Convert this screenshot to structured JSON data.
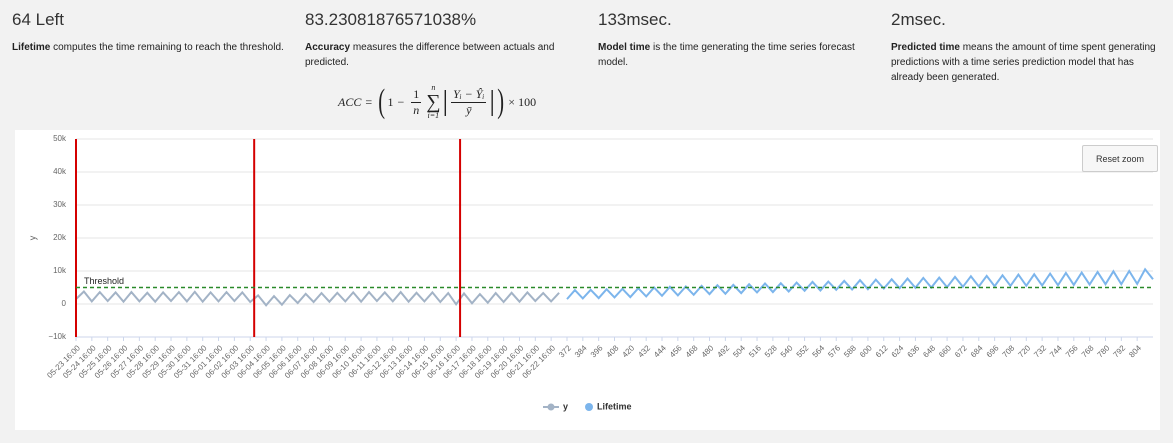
{
  "stats": [
    {
      "value": "64 Left",
      "term": "Lifetime",
      "text": "computes the time remaining to reach the threshold."
    },
    {
      "value": "83.23081876571038%",
      "term": "Accuracy",
      "text": "measures the difference between actuals and predicted."
    },
    {
      "value": "133msec.",
      "term": "Model time",
      "text": "is the time generating the time series forecast model."
    },
    {
      "value": "2msec.",
      "term": "Predicted time",
      "text": "means the amount of time spent generating predictions with a time series prediction model that has already been generated."
    }
  ],
  "formula": {
    "lhs": "ACC",
    "eq": "=",
    "open": "(",
    "one": "1",
    "minus": "−",
    "frac_num": "1",
    "frac_den": "n",
    "sigma": "∑",
    "sum_top": "n",
    "sum_bottom": "i=1",
    "bar": "|",
    "abs_num": "Yᵢ − Ŷᵢ",
    "abs_den": "ȳ",
    "close": ")",
    "factor": "× 100"
  },
  "reset_button": "Reset zoom",
  "chart_data": {
    "type": "line",
    "y_axis_title": "y",
    "ylim": [
      -10000,
      50000
    ],
    "yticks": [
      {
        "value": -10000,
        "label": "−10k"
      },
      0,
      {
        "value": 10000,
        "label": "10k"
      },
      {
        "value": 20000,
        "label": "20k"
      },
      {
        "value": 30000,
        "label": "30k"
      },
      {
        "value": 40000,
        "label": "40k"
      },
      {
        "value": 50000,
        "label": "50k"
      }
    ],
    "xlim": [
      0,
      816
    ],
    "xticks": [
      {
        "value": 0,
        "label": "05-23 16:00"
      },
      {
        "value": 12,
        "label": "05-24 16:00"
      },
      {
        "value": 24,
        "label": "05-25 16:00"
      },
      {
        "value": 36,
        "label": "05-26 16:00"
      },
      {
        "value": 48,
        "label": "05-27 16:00"
      },
      {
        "value": 60,
        "label": "05-28 16:00"
      },
      {
        "value": 72,
        "label": "05-29 16:00"
      },
      {
        "value": 84,
        "label": "05-30 16:00"
      },
      {
        "value": 96,
        "label": "05-31 16:00"
      },
      {
        "value": 108,
        "label": "06-01 16:00"
      },
      {
        "value": 120,
        "label": "06-02 16:00"
      },
      {
        "value": 132,
        "label": "06-03 16:00"
      },
      {
        "value": 144,
        "label": "06-04 16:00"
      },
      {
        "value": 156,
        "label": "06-05 16:00"
      },
      {
        "value": 168,
        "label": "06-06 16:00"
      },
      {
        "value": 180,
        "label": "06-07 16:00"
      },
      {
        "value": 192,
        "label": "06-08 16:00"
      },
      {
        "value": 204,
        "label": "06-09 16:00"
      },
      {
        "value": 216,
        "label": "06-10 16:00"
      },
      {
        "value": 228,
        "label": "06-11 16:00"
      },
      {
        "value": 240,
        "label": "06-12 16:00"
      },
      {
        "value": 252,
        "label": "06-13 16:00"
      },
      {
        "value": 264,
        "label": "06-14 16:00"
      },
      {
        "value": 276,
        "label": "06-15 16:00"
      },
      {
        "value": 288,
        "label": "06-16 16:00"
      },
      {
        "value": 300,
        "label": "06-17 16:00"
      },
      {
        "value": 312,
        "label": "06-18 16:00"
      },
      {
        "value": 324,
        "label": "06-19 16:00"
      },
      {
        "value": 336,
        "label": "06-20 16:00"
      },
      {
        "value": 348,
        "label": "06-21 16:00"
      },
      {
        "value": 360,
        "label": "06-22 16:00"
      },
      372,
      384,
      396,
      408,
      420,
      432,
      444,
      456,
      468,
      480,
      492,
      504,
      516,
      528,
      540,
      552,
      564,
      576,
      588,
      600,
      612,
      624,
      636,
      648,
      660,
      672,
      684,
      696,
      708,
      720,
      732,
      744,
      756,
      768,
      780,
      792,
      804
    ],
    "grid": true,
    "plot_lines": [
      {
        "value": 0,
        "color": "#d40000"
      },
      {
        "value": 135,
        "color": "#d40000"
      },
      {
        "value": 291,
        "color": "#d40000"
      }
    ],
    "threshold": {
      "value": 5000,
      "label": "Threshold",
      "color": "#2a8a2a"
    },
    "series": [
      {
        "name": "y",
        "color": "#a3b3c6",
        "x": [
          0,
          6,
          12,
          18,
          24,
          30,
          36,
          42,
          48,
          54,
          60,
          66,
          72,
          78,
          84,
          90,
          96,
          102,
          108,
          114,
          120,
          126,
          132,
          138,
          144,
          150,
          156,
          162,
          168,
          174,
          180,
          186,
          192,
          198,
          204,
          210,
          216,
          222,
          228,
          234,
          240,
          246,
          252,
          258,
          264,
          270,
          276,
          282,
          288,
          294,
          300,
          306,
          312,
          318,
          324,
          330,
          336,
          342,
          348,
          354,
          360,
          366
        ],
        "values": [
          1500,
          3800,
          800,
          3600,
          900,
          3500,
          700,
          3600,
          800,
          3400,
          700,
          3500,
          900,
          3600,
          800,
          3700,
          700,
          3500,
          800,
          3600,
          900,
          3500,
          600,
          2600,
          -400,
          2400,
          -200,
          2700,
          300,
          3100,
          600,
          3300,
          700,
          3400,
          800,
          3500,
          700,
          3600,
          900,
          3500,
          800,
          3600,
          700,
          3400,
          800,
          3500,
          600,
          3300,
          -100,
          3200,
          200,
          3000,
          400,
          3300,
          600,
          3400,
          700,
          3500,
          900,
          3300,
          800,
          3400
        ]
      },
      {
        "name": "Lifetime",
        "color": "#7cb5ec",
        "x": [
          372,
          378,
          384,
          390,
          396,
          402,
          408,
          414,
          420,
          426,
          432,
          438,
          444,
          450,
          456,
          462,
          468,
          474,
          480,
          486,
          492,
          498,
          504,
          510,
          516,
          522,
          528,
          534,
          540,
          546,
          552,
          558,
          564,
          570,
          576,
          582,
          588,
          594,
          600,
          606,
          612,
          618,
          624,
          630,
          636,
          642,
          648,
          654,
          660,
          666,
          672,
          678,
          684,
          690,
          696,
          702,
          708,
          714,
          720,
          726,
          732,
          738,
          744,
          750,
          756,
          762,
          768,
          774,
          780,
          786,
          792,
          798,
          804,
          810,
          816
        ],
        "values": [
          1500,
          4200,
          1700,
          4300,
          1800,
          4500,
          2000,
          4600,
          2100,
          4800,
          2300,
          5000,
          2500,
          5200,
          2600,
          5300,
          2800,
          5500,
          3000,
          5700,
          3100,
          5800,
          3300,
          6000,
          3500,
          6200,
          3600,
          6300,
          3800,
          6500,
          4000,
          6700,
          4100,
          6800,
          4300,
          7000,
          4400,
          7200,
          4500,
          7400,
          4700,
          7500,
          4800,
          7700,
          4900,
          7900,
          5000,
          8000,
          5100,
          8200,
          5200,
          8400,
          5300,
          8500,
          5400,
          8700,
          5500,
          8900,
          5500,
          9000,
          5600,
          9200,
          5700,
          9400,
          5800,
          9500,
          5900,
          9700,
          6000,
          9900,
          6000,
          10000,
          6100,
          10500,
          7500
        ]
      }
    ]
  }
}
